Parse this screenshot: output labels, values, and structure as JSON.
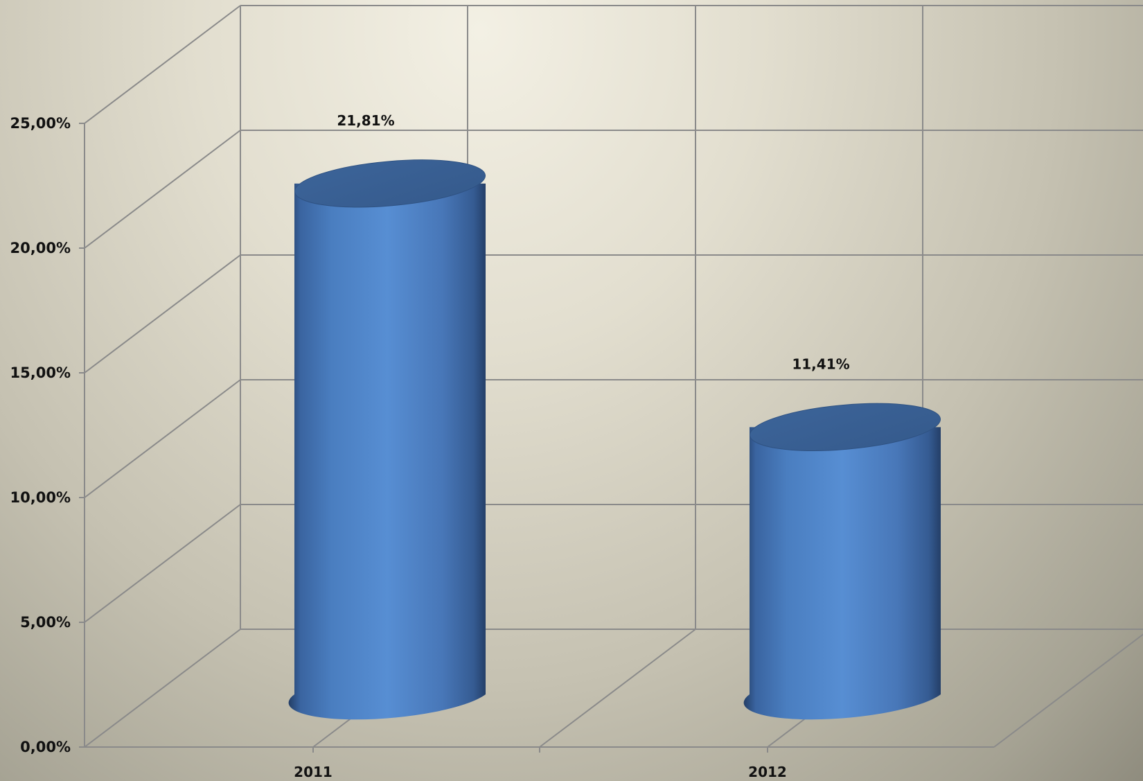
{
  "chart_data": {
    "type": "bar",
    "style": "3d-cylinder",
    "categories": [
      "2011",
      "2012"
    ],
    "series": [
      {
        "values": [
          21.81,
          11.41
        ],
        "data_labels": [
          "21,81%",
          "11,41%"
        ],
        "color": "#4f81bd"
      }
    ],
    "y_ticks": [
      0,
      5,
      10,
      15,
      20,
      25
    ],
    "y_tick_labels": [
      "0,00%",
      "5,00%",
      "10,00%",
      "15,00%",
      "20,00%",
      "25,00%"
    ],
    "ylim": [
      0,
      25
    ],
    "title": "",
    "xlabel": "",
    "ylabel": "",
    "grid": true,
    "legend": "none"
  },
  "colors": {
    "bar": "#4f81bd",
    "grid": "#8a8a8a",
    "text": "#111111"
  }
}
